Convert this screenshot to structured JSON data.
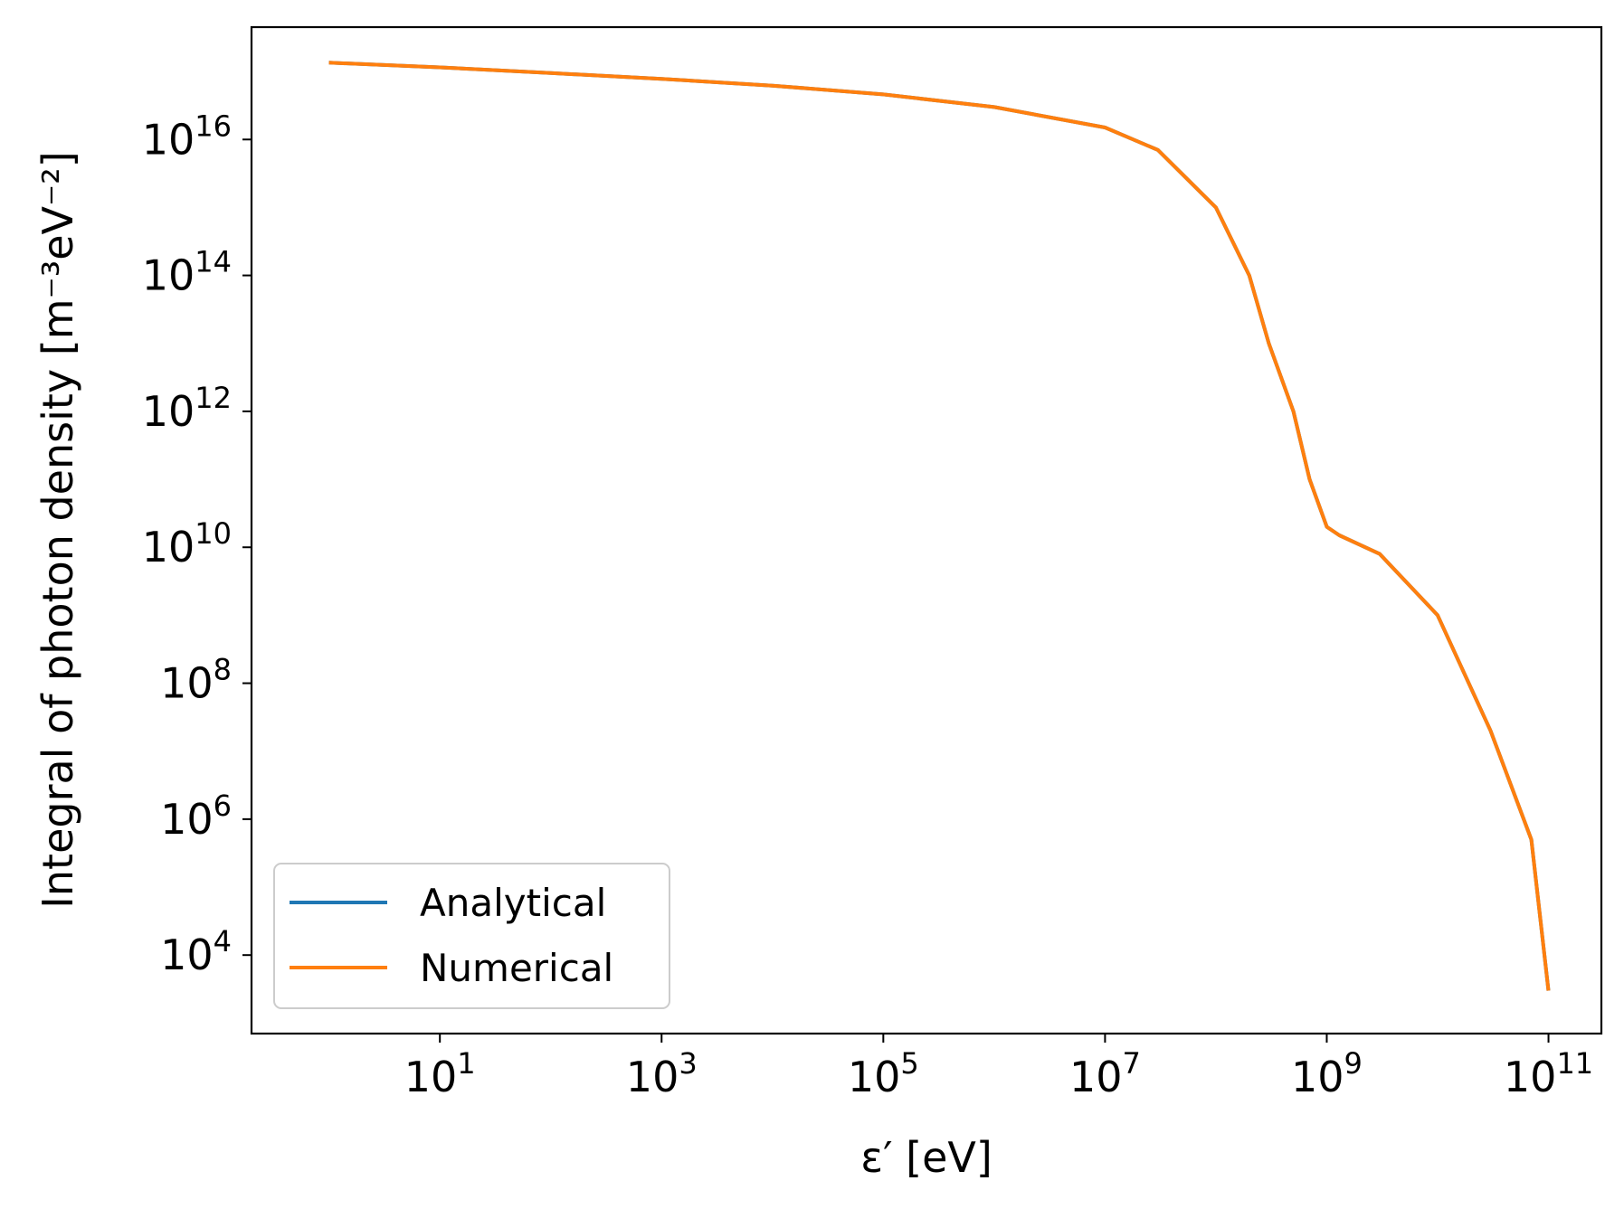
{
  "chart_data": {
    "type": "line",
    "xlabel": "ε′ [eV]",
    "ylabel": "Integral of photon density [m⁻³eV⁻²]",
    "x_scale": "log",
    "y_scale": "log",
    "xlim": [
      0.2,
      300000000000
    ],
    "ylim": [
      700,
      4.5e+17
    ],
    "grid": false,
    "legend_position": "lower-left",
    "x_ticks": [
      {
        "base": "10",
        "exp": "1",
        "value": 10
      },
      {
        "base": "10",
        "exp": "3",
        "value": 1000
      },
      {
        "base": "10",
        "exp": "5",
        "value": 100000
      },
      {
        "base": "10",
        "exp": "7",
        "value": 10000000
      },
      {
        "base": "10",
        "exp": "9",
        "value": 1000000000
      },
      {
        "base": "10",
        "exp": "11",
        "value": 100000000000
      }
    ],
    "y_ticks": [
      {
        "base": "10",
        "exp": "4",
        "value": 10000
      },
      {
        "base": "10",
        "exp": "6",
        "value": 1000000
      },
      {
        "base": "10",
        "exp": "8",
        "value": 100000000
      },
      {
        "base": "10",
        "exp": "10",
        "value": 10000000000
      },
      {
        "base": "10",
        "exp": "12",
        "value": 1000000000000
      },
      {
        "base": "10",
        "exp": "14",
        "value": 100000000000000
      },
      {
        "base": "10",
        "exp": "16",
        "value": 10000000000000000
      }
    ],
    "series": [
      {
        "name": "Analytical",
        "color": "#1f77b4",
        "x": [
          1,
          10,
          100,
          1000,
          10000,
          100000,
          1000000,
          10000000,
          30000000,
          100000000,
          200000000,
          300000000,
          500000000,
          700000000,
          1000000000,
          1300000000,
          3000000000,
          10000000000,
          30000000000,
          70000000000,
          100000000000
        ],
        "y": [
          1.35e+17,
          1.15e+17,
          9.5e+16,
          7.8e+16,
          6.2e+16,
          4.6e+16,
          3e+16,
          1.5e+16,
          7000000000000000.0,
          1000000000000000.0,
          100000000000000.0,
          10000000000000.0,
          1000000000000.0,
          100000000000.0,
          20000000000.0,
          15000000000.0,
          8000000000.0,
          1000000000.0,
          20000000.0,
          500000.0,
          3000.0
        ]
      },
      {
        "name": "Numerical",
        "color": "#ff7f0e",
        "x": [
          1,
          10,
          100,
          1000,
          10000,
          100000,
          1000000,
          10000000,
          30000000,
          100000000,
          200000000,
          300000000,
          500000000,
          700000000,
          1000000000,
          1300000000,
          3000000000,
          10000000000,
          30000000000,
          70000000000,
          100000000000
        ],
        "y": [
          1.35e+17,
          1.15e+17,
          9.5e+16,
          7.8e+16,
          6.2e+16,
          4.6e+16,
          3e+16,
          1.5e+16,
          7000000000000000.0,
          1000000000000000.0,
          100000000000000.0,
          10000000000000.0,
          1000000000000.0,
          100000000000.0,
          20000000000.0,
          15000000000.0,
          8000000000.0,
          1000000000.0,
          20000000.0,
          500000.0,
          3000.0
        ]
      }
    ]
  }
}
